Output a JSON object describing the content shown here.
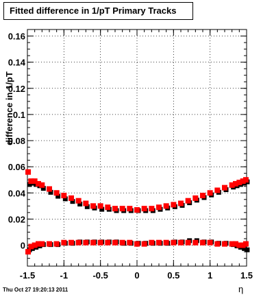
{
  "title": "Fitted difference in 1/pT  Primary Tracks",
  "footer": {
    "date": "Thu Oct 27 19:20:13 2011"
  },
  "chart_data": {
    "type": "scatter",
    "xlabel": "η",
    "ylabel": "difference in 1/pT",
    "xlim": [
      -1.5,
      1.5
    ],
    "ylim": [
      -0.016,
      0.165
    ],
    "x_ticks": [
      "-1.5",
      "-1",
      "-0.5",
      "0",
      "0.5",
      "1",
      "1.5"
    ],
    "x_tick_values": [
      -1.5,
      -1,
      -0.5,
      0,
      0.5,
      1,
      1.5
    ],
    "y_ticks": [
      "0",
      "0.02",
      "0.04",
      "0.06",
      "0.08",
      "0.1",
      "0.12",
      "0.14",
      "0.16"
    ],
    "y_tick_values": [
      0,
      0.02,
      0.04,
      0.06,
      0.08,
      0.1,
      0.12,
      0.14,
      0.16
    ],
    "grid": true,
    "colors": {
      "red": "#ff0000",
      "black": "#000000"
    },
    "series": [
      {
        "color": "black",
        "x": [
          -1.49,
          -1.45,
          -1.4,
          -1.35,
          -1.3,
          -1.2,
          -1.1,
          -1.0,
          -0.9,
          -0.8,
          -0.7,
          -0.6,
          -0.5,
          -0.4,
          -0.3,
          -0.2,
          -0.1,
          0.0,
          0.1,
          0.2,
          0.3,
          0.4,
          0.5,
          0.6,
          0.7,
          0.8,
          0.9,
          1.0,
          1.1,
          1.2,
          1.3,
          1.35,
          1.4,
          1.45,
          1.49
        ],
        "y": [
          0.047,
          0.048,
          0.047,
          0.046,
          0.044,
          0.041,
          0.038,
          0.036,
          0.034,
          0.032,
          0.03,
          0.029,
          0.028,
          0.028,
          0.027,
          0.027,
          0.027,
          0.027,
          0.027,
          0.027,
          0.028,
          0.029,
          0.03,
          0.031,
          0.033,
          0.035,
          0.037,
          0.039,
          0.041,
          0.043,
          0.045,
          0.046,
          0.047,
          0.048,
          0.049
        ]
      },
      {
        "color": "red",
        "x": [
          -1.49,
          -1.45,
          -1.4,
          -1.35,
          -1.3,
          -1.2,
          -1.1,
          -1.0,
          -0.9,
          -0.8,
          -0.7,
          -0.6,
          -0.5,
          -0.4,
          -0.3,
          -0.2,
          -0.1,
          0.0,
          0.1,
          0.2,
          0.3,
          0.4,
          0.5,
          0.6,
          0.7,
          0.8,
          0.9,
          1.0,
          1.1,
          1.2,
          1.3,
          1.35,
          1.4,
          1.45,
          1.49
        ],
        "y": [
          0.056,
          0.049,
          0.049,
          0.047,
          0.046,
          0.043,
          0.04,
          0.038,
          0.036,
          0.034,
          0.032,
          0.03,
          0.03,
          0.029,
          0.028,
          0.028,
          0.028,
          0.027,
          0.028,
          0.028,
          0.029,
          0.03,
          0.031,
          0.032,
          0.034,
          0.036,
          0.038,
          0.04,
          0.042,
          0.044,
          0.046,
          0.047,
          0.048,
          0.049,
          0.05
        ]
      },
      {
        "color": "black",
        "x": [
          -1.49,
          -1.45,
          -1.4,
          -1.35,
          -1.3,
          -1.2,
          -1.1,
          -1.0,
          -0.9,
          -0.8,
          -0.7,
          -0.6,
          -0.5,
          -0.4,
          -0.3,
          -0.2,
          -0.1,
          0.0,
          0.1,
          0.2,
          0.3,
          0.4,
          0.5,
          0.6,
          0.7,
          0.8,
          0.9,
          1.0,
          1.1,
          1.2,
          1.3,
          1.35,
          1.4,
          1.45,
          1.49
        ],
        "y": [
          -0.003,
          -0.002,
          -0.001,
          0.0,
          0.001,
          0.001,
          0.001,
          0.002,
          0.002,
          0.003,
          0.003,
          0.003,
          0.003,
          0.003,
          0.003,
          0.002,
          0.002,
          0.002,
          0.002,
          0.002,
          0.002,
          0.002,
          0.003,
          0.003,
          0.004,
          0.004,
          0.003,
          0.003,
          0.002,
          0.002,
          0.001,
          0.0,
          -0.001,
          -0.002,
          -0.003
        ]
      },
      {
        "color": "red",
        "x": [
          -1.49,
          -1.45,
          -1.4,
          -1.35,
          -1.3,
          -1.2,
          -1.1,
          -1.0,
          -0.9,
          -0.8,
          -0.7,
          -0.6,
          -0.5,
          -0.4,
          -0.3,
          -0.2,
          -0.1,
          0.0,
          0.1,
          0.2,
          0.3,
          0.4,
          0.5,
          0.6,
          0.7,
          0.8,
          0.9,
          1.0,
          1.1,
          1.2,
          1.3,
          1.35,
          1.4,
          1.45,
          1.49
        ],
        "y": [
          -0.005,
          -0.001,
          0.0,
          0.001,
          0.001,
          0.001,
          0.001,
          0.002,
          0.002,
          0.002,
          0.002,
          0.002,
          0.002,
          0.002,
          0.002,
          0.002,
          0.002,
          0.001,
          0.001,
          0.002,
          0.002,
          0.002,
          0.002,
          0.002,
          0.002,
          0.002,
          0.002,
          0.002,
          0.001,
          0.001,
          0.001,
          0.001,
          0.0,
          0.0,
          0.001
        ]
      }
    ]
  }
}
